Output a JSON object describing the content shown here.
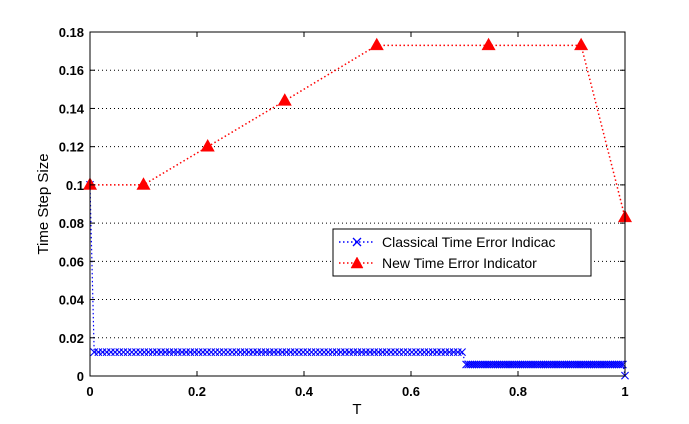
{
  "chart_data": {
    "type": "line",
    "title": "",
    "xlabel": "T",
    "ylabel": "Time Step Size",
    "xlim": [
      0,
      1
    ],
    "ylim": [
      0,
      0.18
    ],
    "x_ticks": [
      "0",
      "0.2",
      "0.4",
      "0.6",
      "0.8",
      "1"
    ],
    "y_ticks": [
      "0",
      "0.02",
      "0.04",
      "0.06",
      "0.08",
      "0.1",
      "0.12",
      "0.14",
      "0.16",
      "0.18"
    ],
    "grid": "horizontal dotted",
    "legend_position": "right-center",
    "series": [
      {
        "name": "Classical Time Error Indicac",
        "color": "#0000ff",
        "line_style": "dotted",
        "marker": "x",
        "segments": [
          {
            "x_start": 0.0,
            "x_end": 0.0,
            "step": 0,
            "value": 0.1
          },
          {
            "x_start": 0.0078,
            "x_end": 0.7031,
            "step": 0.0078125,
            "value": 0.0125
          },
          {
            "x_start": 0.7031,
            "x_end": 0.9988,
            "step": 0.0039063,
            "value": 0.006
          },
          {
            "x_start": 1.0,
            "x_end": 1.0,
            "step": 0,
            "value": 0.0002
          }
        ],
        "x": [
          0.0,
          0.0078,
          0.7031,
          0.707,
          0.9988,
          1.0
        ],
        "values": [
          0.1,
          0.0125,
          0.0125,
          0.006,
          0.006,
          0.0002
        ]
      },
      {
        "name": "New Time Error Indicator",
        "color": "#ff0000",
        "line_style": "dotted",
        "marker": "triangle",
        "x": [
          0.0,
          0.1,
          0.22,
          0.364,
          0.536,
          0.745,
          0.918,
          1.0
        ],
        "values": [
          0.1,
          0.1,
          0.12,
          0.144,
          0.173,
          0.173,
          0.173,
          0.083
        ]
      }
    ]
  }
}
